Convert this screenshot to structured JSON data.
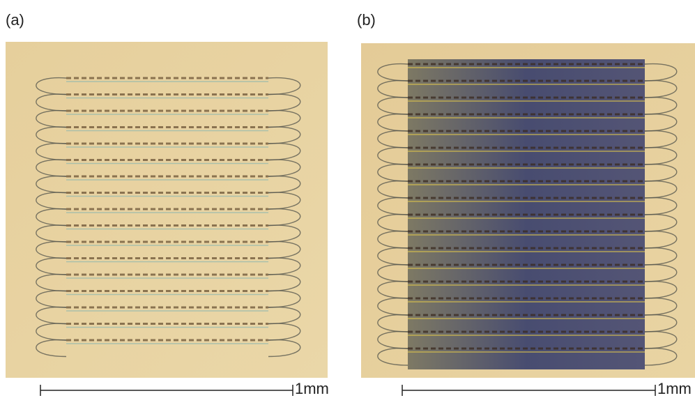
{
  "panels": [
    {
      "label": "(a)",
      "scale_label": "1mm"
    },
    {
      "label": "(b)",
      "scale_label": "1mm"
    }
  ]
}
